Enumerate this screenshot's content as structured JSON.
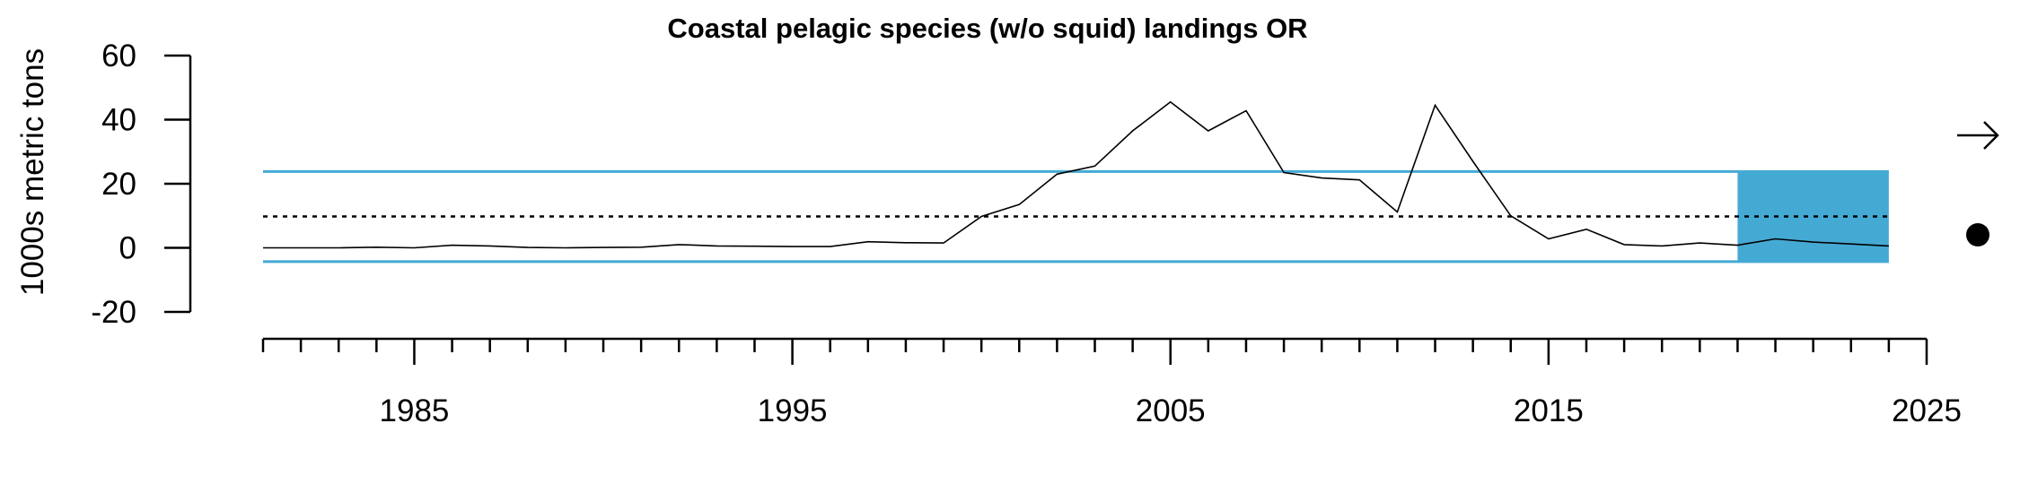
{
  "chart_data": {
    "type": "line",
    "title": "Coastal pelagic species (w/o squid) landings OR",
    "xlabel": "",
    "ylabel": "1000s metric tons",
    "xlim": [
      1981,
      2025
    ],
    "ylim": [
      -20,
      60
    ],
    "x_ticks": [
      1985,
      1995,
      2005,
      2015,
      2025
    ],
    "y_ticks": [
      -20,
      0,
      20,
      40,
      60
    ],
    "x": [
      1981,
      1982,
      1983,
      1984,
      1985,
      1986,
      1987,
      1988,
      1989,
      1990,
      1991,
      1992,
      1993,
      1994,
      1995,
      1996,
      1997,
      1998,
      1999,
      2000,
      2001,
      2002,
      2003,
      2004,
      2005,
      2006,
      2007,
      2008,
      2009,
      2010,
      2011,
      2012,
      2013,
      2014,
      2015,
      2016,
      2017,
      2018,
      2019,
      2020,
      2021,
      2022,
      2023,
      2024
    ],
    "series": [
      {
        "values": [
          0.0,
          0.0,
          0.0,
          0.2,
          0.0,
          0.8,
          0.6,
          0.1,
          0.0,
          0.1,
          0.2,
          1.0,
          0.6,
          0.5,
          0.4,
          0.4,
          1.9,
          1.6,
          1.5,
          9.8,
          13.5,
          23.0,
          25.5,
          36.5,
          45.5,
          36.5,
          42.8,
          23.5,
          21.8,
          21.2,
          11.2,
          44.5,
          27.0,
          10.0,
          2.8,
          5.8,
          1.0,
          0.6,
          1.5,
          0.8,
          2.8,
          1.8,
          1.2,
          0.6
        ]
      }
    ],
    "mean": 9.8,
    "upper_sd": 23.8,
    "lower_sd": -4.3,
    "highlight_range": [
      2020,
      2024
    ],
    "colors": {
      "sd_lines": "#44aad4",
      "highlight": "#44aad4",
      "series": "#000000"
    },
    "trend_indicator": "right-arrow-icon",
    "status_indicator": "filled-circle-icon"
  }
}
